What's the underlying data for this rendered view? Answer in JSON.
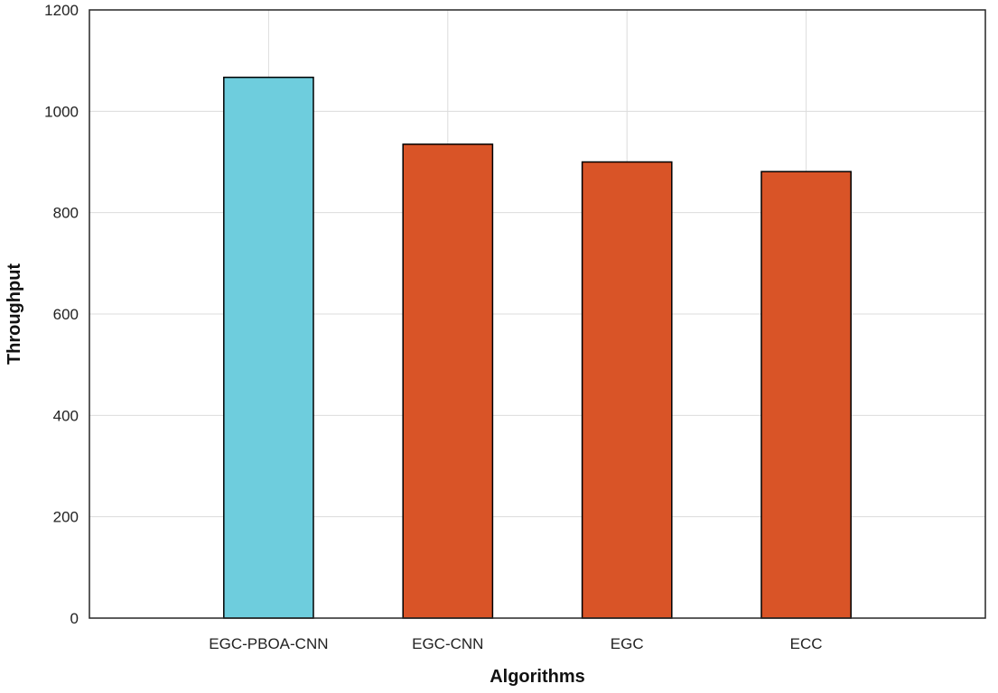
{
  "chart_data": {
    "type": "bar",
    "title": "",
    "xlabel": "Algorithms",
    "ylabel": "Throughput",
    "categories": [
      "EGC-PBOA-CNN",
      "EGC-CNN",
      "EGC",
      "ECC"
    ],
    "values": [
      1067,
      935,
      900,
      881
    ],
    "bar_colors": [
      "#6ECDDD",
      "#D95427",
      "#D95427",
      "#D95427"
    ],
    "ylim": [
      0,
      1200
    ],
    "yticks": [
      0,
      200,
      400,
      600,
      800,
      1000,
      1200
    ],
    "grid": true,
    "legend": "none"
  }
}
